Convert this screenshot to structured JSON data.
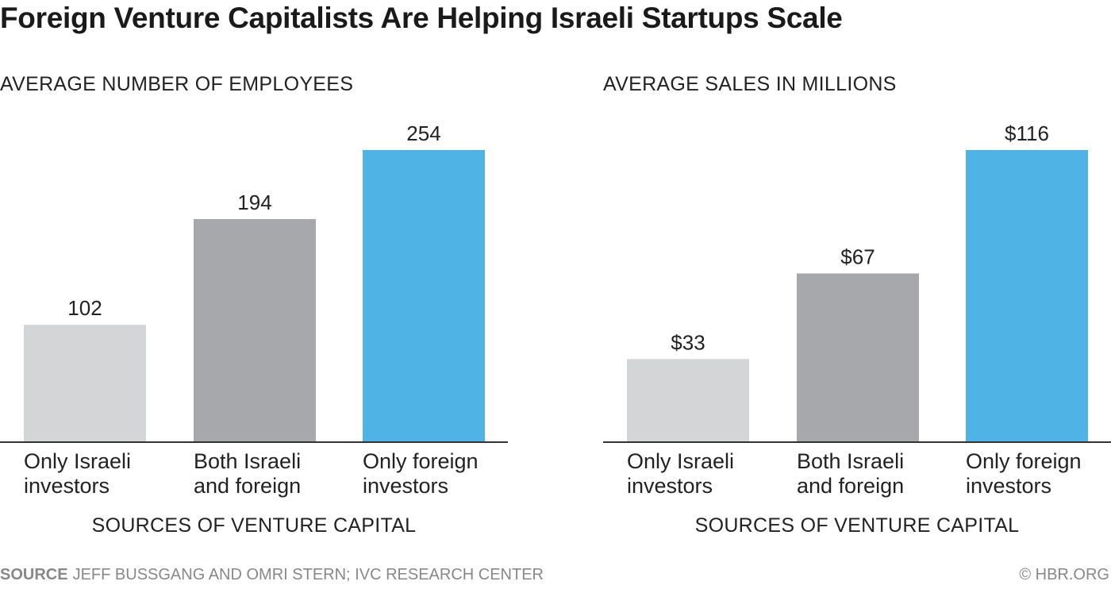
{
  "title": "Foreign Venture Capitalists Are Helping Israeli Startups Scale",
  "colors": {
    "israeli": "#d4d5d7",
    "both": "#a7a8ab",
    "foreign": "#4fb4e5",
    "axis": "#333333"
  },
  "chart_data": [
    {
      "type": "bar",
      "title": "AVERAGE NUMBER OF EMPLOYEES",
      "xlabel": "SOURCES OF VENTURE CAPITAL",
      "ylabel": "",
      "categories": [
        "Only Israeli investors",
        "Both Israeli and foreign",
        "Only foreign investors"
      ],
      "category_lines": [
        [
          "Only Israeli",
          "investors"
        ],
        [
          "Both Israeli",
          "and foreign"
        ],
        [
          "Only foreign",
          "investors"
        ]
      ],
      "values": [
        102,
        194,
        254
      ],
      "value_labels": [
        "102",
        "194",
        "254"
      ],
      "ylim": [
        0,
        254
      ],
      "grid": false
    },
    {
      "type": "bar",
      "title": "AVERAGE SALES IN MILLIONS",
      "xlabel": "SOURCES OF VENTURE CAPITAL",
      "ylabel": "",
      "categories": [
        "Only Israeli investors",
        "Both Israeli and foreign",
        "Only foreign investors"
      ],
      "category_lines": [
        [
          "Only Israeli",
          "investors"
        ],
        [
          "Both Israeli",
          "and foreign"
        ],
        [
          "Only foreign",
          "investors"
        ]
      ],
      "values": [
        33,
        67,
        116
      ],
      "value_labels": [
        "$33",
        "$67",
        "$116"
      ],
      "ylim": [
        0,
        116
      ],
      "grid": false
    }
  ],
  "footer": {
    "source_label": "SOURCE",
    "source_text": "JEFF BUSSGANG AND OMRI STERN; IVC RESEARCH CENTER",
    "credit": "© HBR.ORG"
  }
}
